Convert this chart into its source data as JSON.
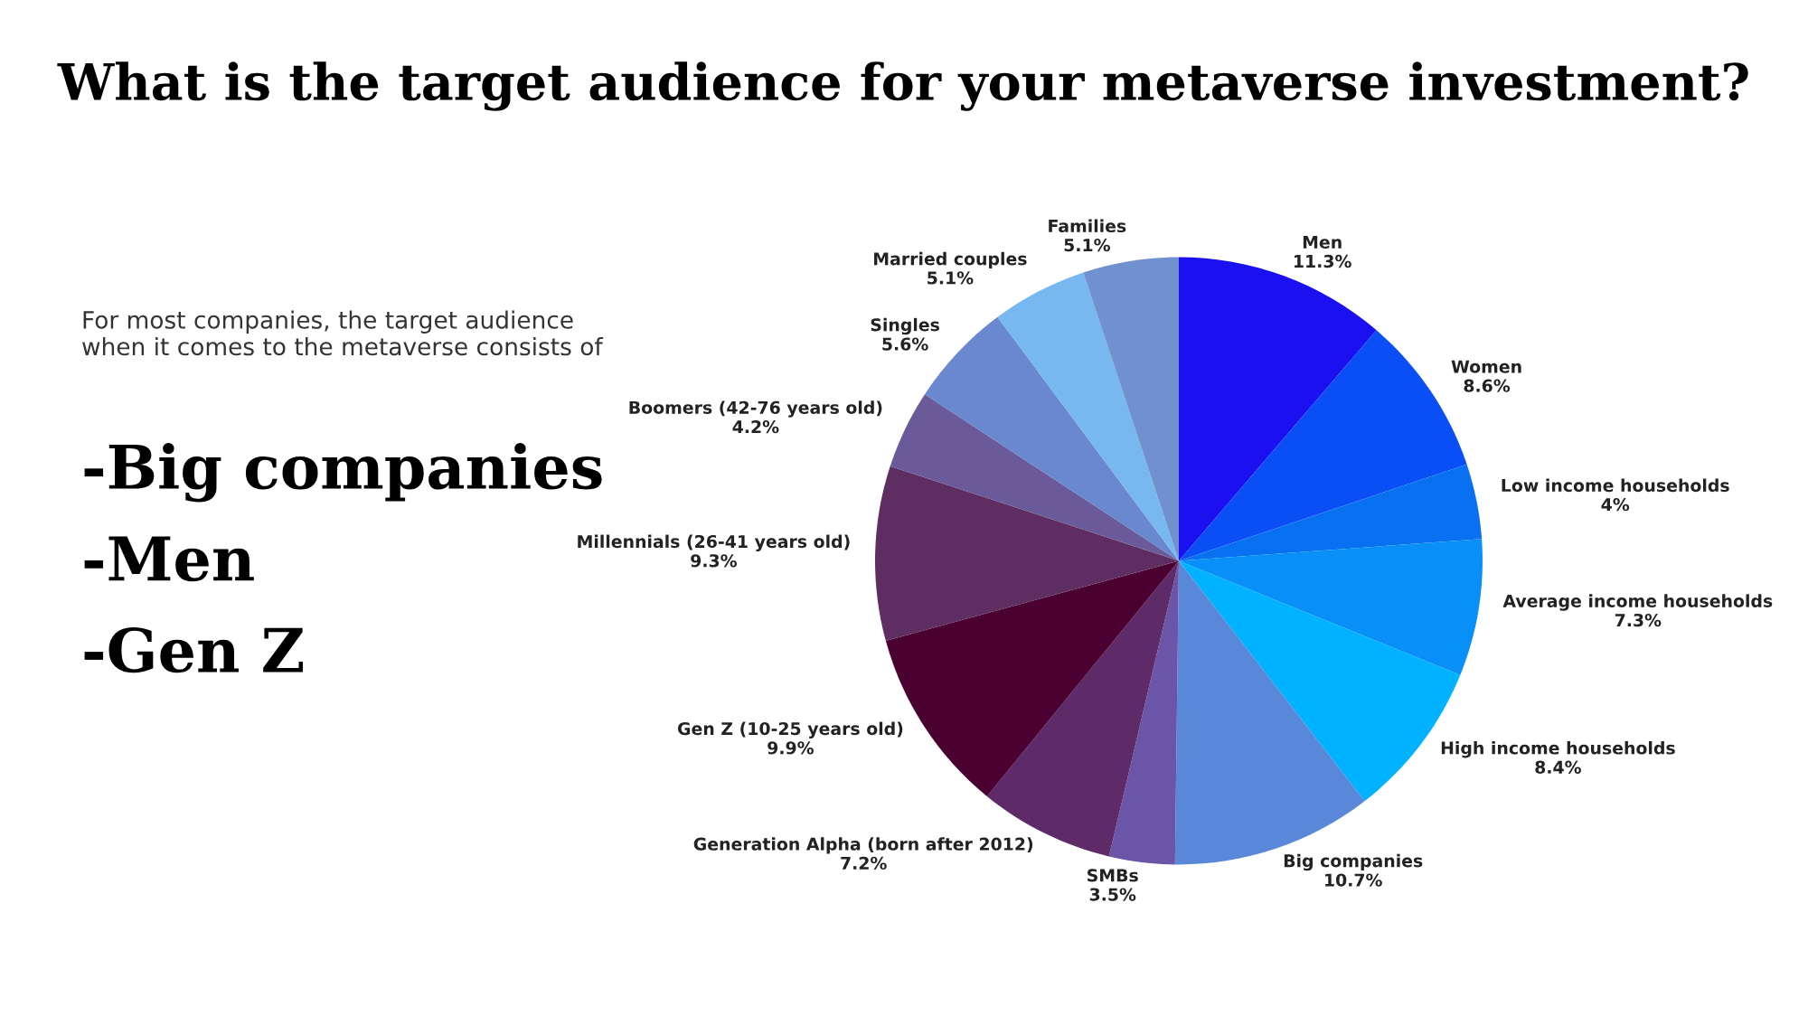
{
  "chart_data": {
    "type": "pie",
    "title": "What is the target audience for your metaverse investment?",
    "categories": [
      "Men",
      "Women",
      "Low income households",
      "Average income households",
      "High income households",
      "Big companies",
      "SMBs",
      "Generation Alpha (born after 2012)",
      "Gen Z (10-25 years old)",
      "Millennials (26-41 years old)",
      "Boomers (42-76 years old)",
      "Singles",
      "Married couples",
      "Families"
    ],
    "values": [
      11.3,
      8.6,
      4,
      7.3,
      8.4,
      10.7,
      3.5,
      7.2,
      9.9,
      9.3,
      4.2,
      5.6,
      5.1,
      5.1
    ],
    "value_labels": [
      "11.3%",
      "8.6%",
      "4%",
      "7.3%",
      "8.4%",
      "10.7%",
      "3.5%",
      "7.2%",
      "9.9%",
      "9.3%",
      "4.2%",
      "5.6%",
      "5.1%",
      "5.1%"
    ],
    "colors": [
      "#1a10f0",
      "#0a4ef5",
      "#0a70f2",
      "#0890f8",
      "#00b2ff",
      "#5a88d8",
      "#6a55a8",
      "#5e2a68",
      "#4a0030",
      "#5e2e62",
      "#6a5a9a",
      "#6a88d0",
      "#78b8f0",
      "#7090d0"
    ],
    "annotations": [
      "For most companies, the target audience when it comes to the metaverse consists of",
      "-Big companies",
      "-Men",
      "-Gen Z"
    ],
    "legend": false
  }
}
